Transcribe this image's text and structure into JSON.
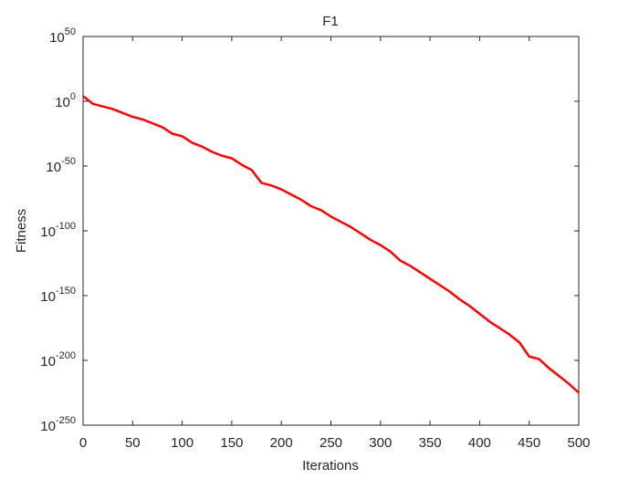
{
  "chart_data": {
    "type": "line",
    "title": "F1",
    "xlabel": "Iterations",
    "ylabel": "Fitness",
    "x": [
      0,
      10,
      20,
      30,
      40,
      50,
      60,
      70,
      80,
      90,
      100,
      110,
      120,
      130,
      140,
      150,
      160,
      170,
      180,
      190,
      200,
      210,
      220,
      230,
      240,
      250,
      260,
      270,
      280,
      290,
      300,
      310,
      320,
      330,
      340,
      350,
      360,
      370,
      380,
      390,
      400,
      410,
      420,
      430,
      440,
      450,
      460,
      470,
      480,
      490,
      500
    ],
    "series": [
      {
        "color": "#ff0000",
        "values": [
          10000.0,
          0.01,
          0.0001,
          1e-06,
          1e-09,
          1e-12,
          1e-14,
          1e-17,
          1e-20,
          1e-25,
          1e-27,
          1e-32,
          1e-35,
          1e-39,
          1e-42,
          1e-44,
          1e-49,
          1e-53,
          1e-63,
          1e-65,
          1e-68,
          1e-72,
          1e-76,
          1e-81,
          1e-84,
          1e-89,
          1e-93,
          1e-97,
          1e-102,
          1e-107,
          1e-111,
          1e-116,
          1e-123,
          1e-127,
          1e-132,
          1e-137,
          1e-142,
          1e-147,
          1e-153,
          1e-158,
          1e-164,
          1e-170,
          1e-175,
          1e-180,
          1e-186,
          1e-197,
          1e-199,
          1e-206,
          1e-212,
          1e-218,
          1e-225
        ]
      }
    ],
    "xlim": [
      0,
      500
    ],
    "xticks": [
      0,
      50,
      100,
      150,
      200,
      250,
      300,
      350,
      400,
      450,
      500
    ],
    "ylim": [
      1e-250,
      1e+50
    ],
    "ylog": true,
    "yticks": [
      {
        "value": 1e+50,
        "label": "10",
        "sup": "50"
      },
      {
        "value": 1,
        "label": "10",
        "sup": "0"
      },
      {
        "value": 1e-50,
        "label": "10",
        "sup": "-50"
      },
      {
        "value": 1e-100,
        "label": "10",
        "sup": "-100"
      },
      {
        "value": 1e-150,
        "label": "10",
        "sup": "-150"
      },
      {
        "value": 1e-200,
        "label": "10",
        "sup": "-200"
      },
      {
        "value": 1e-250,
        "label": "10",
        "sup": "-250"
      }
    ]
  }
}
